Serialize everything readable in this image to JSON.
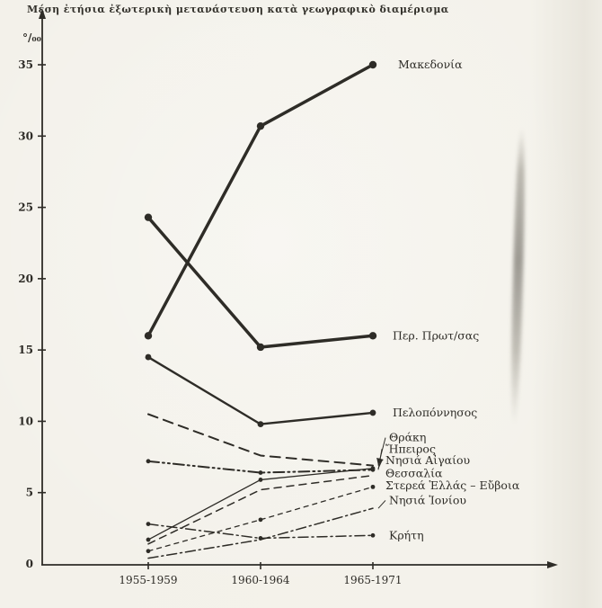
{
  "page": {
    "paper_color": "#f3f1ea",
    "ink_color": "#2e2c27"
  },
  "chart_data": {
    "type": "line",
    "title": "Μέση ἐτήσια ἐξωτερικὴ μετανάστευση κατὰ γεωγραφικὸ διαμέρισμα",
    "ylabel": "°/₀₀",
    "xlabel": "",
    "x_categories": [
      "1955-1959",
      "1960-1964",
      "1965-1971"
    ],
    "ylim": [
      0,
      35
    ],
    "yticks": [
      0,
      5,
      10,
      15,
      20,
      25,
      30,
      35
    ],
    "grid": false,
    "legend_position": "labels-at-line-ends",
    "series": [
      {
        "name": "Μακεδονία",
        "values": [
          16.0,
          30.7,
          35.0
        ],
        "line": "solid",
        "width": 3.5,
        "markers": true
      },
      {
        "name": "Περ. Πρωτ/σας",
        "values": [
          24.3,
          15.2,
          16.0
        ],
        "line": "solid",
        "width": 3.5,
        "markers": true
      },
      {
        "name": "Πελοπόννησος",
        "values": [
          14.5,
          9.8,
          10.6
        ],
        "line": "solid",
        "width": 2.4,
        "markers": true
      },
      {
        "name": "Θράκη",
        "values": [
          10.5,
          7.6,
          6.9
        ],
        "line": "dashed-long",
        "width": 2.0,
        "markers": false
      },
      {
        "name": "Ἤπειρος",
        "values": [
          7.2,
          6.4,
          6.6
        ],
        "line": "dashdotdot",
        "width": 2.0,
        "markers": true
      },
      {
        "name": "Νησιά Αἰγαίου",
        "values": [
          1.7,
          5.9,
          6.7
        ],
        "line": "solid",
        "width": 1.3,
        "markers": true
      },
      {
        "name": "Θεσσαλία",
        "values": [
          1.4,
          5.2,
          6.2
        ],
        "line": "dashed",
        "width": 1.5,
        "markers": false
      },
      {
        "name": "Στερεά Ἑλλάς – Εὔβοια",
        "values": [
          0.9,
          3.1,
          5.4
        ],
        "line": "dashed-short",
        "width": 1.3,
        "markers": true
      },
      {
        "name": "Νησιά Ἰονίου",
        "values": [
          0.4,
          1.7,
          3.9
        ],
        "line": "dashdot",
        "width": 1.5,
        "markers": false
      },
      {
        "name": "Κρήτη",
        "values": [
          2.8,
          1.8,
          2.0
        ],
        "line": "dashdot",
        "width": 1.5,
        "markers": true
      }
    ]
  }
}
